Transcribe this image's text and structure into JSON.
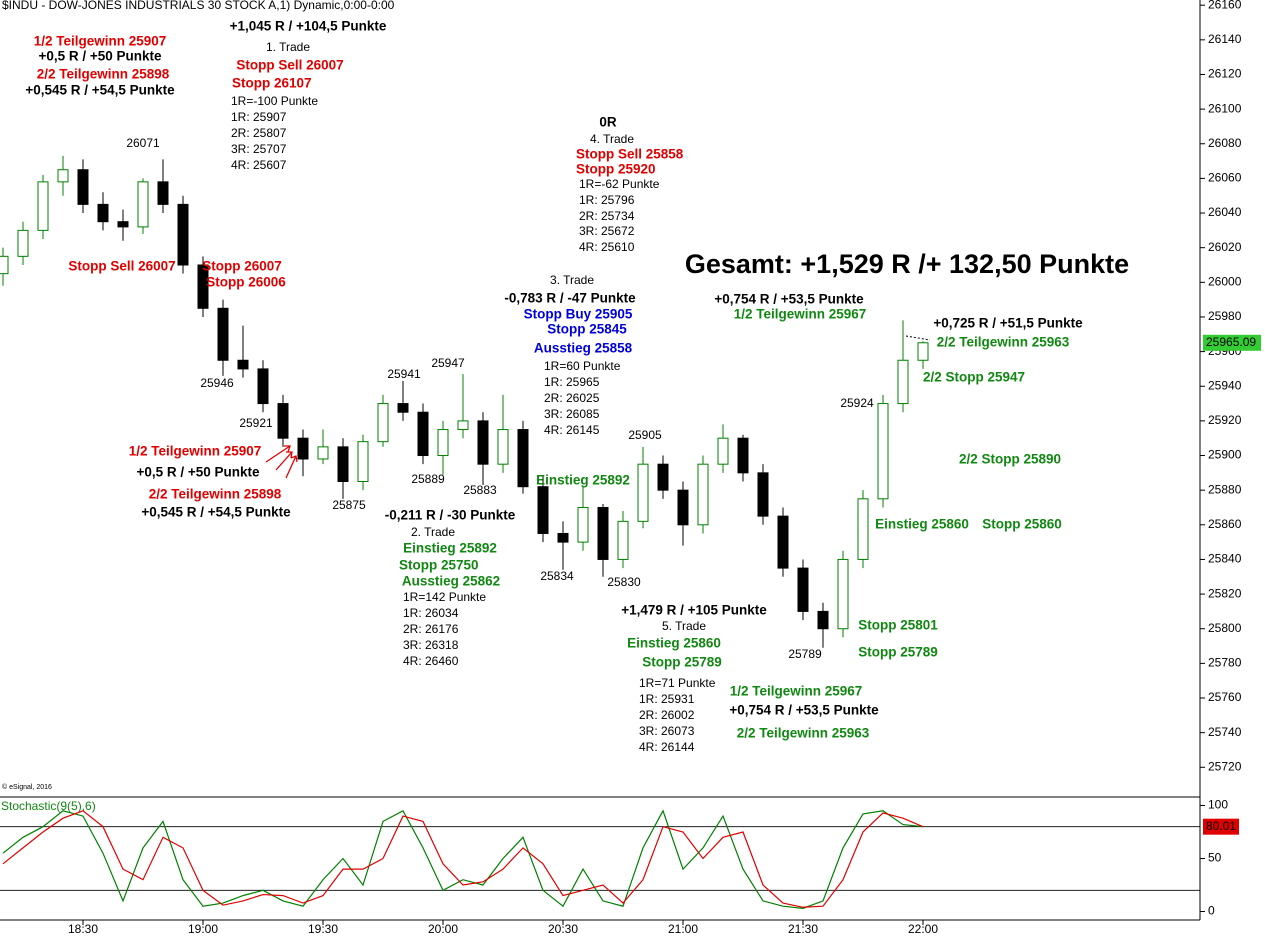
{
  "chart_data": {
    "type": "candlestick",
    "title": "$INDU - DOW-JONES INDUSTRIALS 30 STOCK A,1) Dynamic,0:00-0:00",
    "copyright": "© eSignal, 2016",
    "categories": [
      null,
      null,
      null,
      null,
      "18:30",
      null,
      null,
      null,
      null,
      null,
      "19:00",
      null,
      null,
      null,
      null,
      null,
      "19:30",
      null,
      null,
      null,
      null,
      null,
      "20:00",
      null,
      null,
      null,
      null,
      null,
      "20:30",
      null,
      null,
      null,
      null,
      null,
      "21:00",
      null,
      null,
      null,
      null,
      null,
      "21:30",
      null,
      null,
      null,
      null,
      null,
      "22:00"
    ],
    "open": [
      26005,
      26015,
      26030,
      26058,
      26065,
      26045,
      26035,
      26032,
      26058,
      26045,
      26010,
      25985,
      25955,
      25950,
      25930,
      25910,
      25898,
      25905,
      25885,
      25908,
      25930,
      25925,
      25900,
      25915,
      25920,
      25895,
      25915,
      25882,
      25855,
      25850,
      25870,
      25840,
      25862,
      25895,
      25880,
      25860,
      25895,
      25910,
      25890,
      25865,
      25835,
      25810,
      25800,
      25840,
      25875,
      25930,
      25955
    ],
    "high": [
      26020,
      26035,
      26062,
      26073,
      26071,
      26052,
      26042,
      26060,
      26071,
      26050,
      26015,
      25990,
      25975,
      25955,
      25935,
      25915,
      25915,
      25910,
      25912,
      25935,
      25943,
      25930,
      25920,
      25947,
      25925,
      25935,
      25920,
      25888,
      25862,
      25882,
      25872,
      25868,
      25905,
      25900,
      25885,
      25900,
      25918,
      25912,
      25895,
      25870,
      25840,
      25815,
      25845,
      25880,
      25935,
      25978,
      25966
    ],
    "low": [
      25998,
      26010,
      26025,
      26050,
      26040,
      26030,
      26024,
      26028,
      26040,
      26005,
      25980,
      25946,
      25945,
      25925,
      25905,
      25888,
      25895,
      25875,
      25880,
      25905,
      25920,
      25895,
      25889,
      25910,
      25883,
      25890,
      25878,
      25850,
      25834,
      25845,
      25830,
      25835,
      25858,
      25875,
      25848,
      25855,
      25890,
      25885,
      25860,
      25830,
      25805,
      25789,
      25795,
      25835,
      25870,
      25925,
      25950
    ],
    "close": [
      26015,
      26030,
      26058,
      26065,
      26045,
      26035,
      26032,
      26058,
      26045,
      26010,
      25985,
      25955,
      25950,
      25930,
      25910,
      25898,
      25905,
      25885,
      25908,
      25930,
      25925,
      25900,
      25915,
      25920,
      25895,
      25915,
      25882,
      25855,
      25850,
      25870,
      25840,
      25862,
      25895,
      25880,
      25860,
      25895,
      25910,
      25890,
      25865,
      25835,
      25810,
      25800,
      25840,
      25875,
      25930,
      25955,
      25965.09
    ],
    "up_color": "#008000",
    "down_color": "#000000",
    "last_color": "#33cc33",
    "ylim": [
      25704,
      26163
    ],
    "yticks": [
      25720,
      25740,
      25760,
      25780,
      25800,
      25820,
      25840,
      25860,
      25880,
      25900,
      25920,
      25940,
      25960,
      25980,
      26000,
      26020,
      26040,
      26060,
      26080,
      26100,
      26120,
      26140,
      26160
    ],
    "annotations": [
      "1/2 Teilgewinn 25907",
      "+0,5 R / +50 Punkte",
      "2/2 Teilgewinn 25898",
      "+0,545 R / +54,5 Punkte",
      "+1,045 R / +104,5 Punkte",
      "1. Trade",
      "Stopp Sell 26007",
      "Stopp 26107",
      "1R=-100 Punkte",
      "1R: 25907",
      "2R: 25807",
      "3R: 25707",
      "4R: 25607",
      "26071",
      "Stopp Sell 26007",
      "Stopp 26007",
      "Stopp 26006",
      "25946",
      "25921",
      "1/2 Teilgewinn 25907",
      "+0,5 R / +50 Punkte",
      "2/2 Teilgewinn 25898",
      "+0,545 R / +54,5 Punkte",
      "25875",
      "25941",
      "25947",
      "25889",
      "25883",
      "-0,211 R / -30 Punkte",
      "2. Trade",
      "Einstieg 25892",
      "Stopp 25750",
      "Ausstieg 25862",
      "1R=142 Punkte",
      "1R: 26034",
      "2R: 26176",
      "3R: 26318",
      "4R: 26460",
      "0R",
      "4. Trade",
      "Stopp Sell 25858",
      "Stopp 25920",
      "1R=-62 Punkte",
      "1R: 25796",
      "2R: 25734",
      "3R: 25672",
      "4R: 25610",
      "3. Trade",
      "-0,783 R / -47 Punkte",
      "Stopp Buy 25905",
      "Stopp 25845",
      "Ausstieg 25858",
      "1R=60 Punkte",
      "1R: 25965",
      "2R: 26025",
      "3R: 26085",
      "4R: 26145",
      "25905",
      "Einstieg 25892",
      "25834",
      "25830",
      "+1,479 R / +105 Punkte",
      "5. Trade",
      "Einstieg 25860",
      "Stopp 25789",
      "1R=71 Punkte",
      "1R: 25931",
      "2R: 26002",
      "3R: 26073",
      "4R: 26144",
      "1/2 Teilgewinn 25967",
      "+0,754 R / +53,5 Punkte",
      "2/2 Teilgewinn 25963",
      "25789",
      "Gesamt: +1,529 R /+ 132,50 Punkte",
      "+0,754 R / +53,5 Punkte",
      "1/2 Teilgewinn 25967",
      "+0,725 R / +51,5 Punkte",
      "2/2 Teilgewinn 25963",
      "2/2 Stopp 25947",
      "25924",
      "2/2 Stopp 25890",
      "Einstieg 25860",
      "Stopp 25860",
      "Stopp 25801",
      "Stopp 25789"
    ],
    "stochastic": {
      "label": "Stochastic(9(5),6)",
      "ylim": [
        -8,
        108
      ],
      "yticks": [
        0,
        50,
        100
      ],
      "levels": [
        20,
        80
      ],
      "series": [
        {
          "color": "#008000",
          "values": [
            55,
            70,
            80,
            95,
            90,
            55,
            10,
            60,
            85,
            30,
            5,
            8,
            15,
            20,
            10,
            5,
            30,
            50,
            25,
            85,
            95,
            60,
            20,
            30,
            25,
            50,
            70,
            20,
            5,
            40,
            10,
            5,
            60,
            95,
            40,
            60,
            90,
            40,
            10,
            5,
            3,
            10,
            60,
            92,
            95,
            82,
            80
          ]
        },
        {
          "color": "#e00000",
          "values": [
            45,
            60,
            75,
            88,
            95,
            80,
            40,
            30,
            70,
            60,
            20,
            6,
            10,
            16,
            15,
            8,
            15,
            40,
            40,
            50,
            90,
            85,
            45,
            25,
            28,
            40,
            60,
            45,
            15,
            20,
            25,
            8,
            30,
            80,
            75,
            50,
            70,
            75,
            25,
            8,
            4,
            5,
            30,
            75,
            93,
            88,
            80.01
          ]
        }
      ]
    }
  }
}
